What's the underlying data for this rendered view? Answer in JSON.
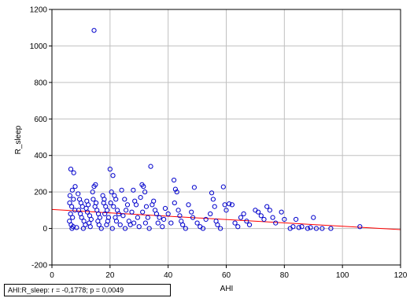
{
  "chart_data": {
    "type": "scatter",
    "title": "",
    "xlabel": "AHI",
    "ylabel": "R_sleep",
    "xlim": [
      0,
      120
    ],
    "ylim": [
      -200,
      1200
    ],
    "xticks": [
      0,
      20,
      40,
      60,
      80,
      100,
      120
    ],
    "yticks": [
      -200,
      0,
      200,
      400,
      600,
      800,
      1000,
      1200
    ],
    "grid": true,
    "marker_color": "#0000cc",
    "fit_line_color": "#ff0000",
    "fit_line": {
      "x": [
        0,
        120
      ],
      "y": [
        104,
        -6
      ]
    },
    "annotation": "AHI:R_sleep:   r = -0,1778; p = 0,0049",
    "points": [
      [
        14.5,
        1085
      ],
      [
        6.5,
        325
      ],
      [
        7.5,
        305
      ],
      [
        8,
        230
      ],
      [
        7,
        210
      ],
      [
        6.2,
        180
      ],
      [
        7.4,
        160
      ],
      [
        6.1,
        140
      ],
      [
        6.8,
        120
      ],
      [
        7.9,
        100
      ],
      [
        6.4,
        80
      ],
      [
        7.1,
        60
      ],
      [
        6,
        40
      ],
      [
        6.6,
        20
      ],
      [
        7.3,
        10
      ],
      [
        6.9,
        0
      ],
      [
        8.5,
        5
      ],
      [
        9,
        190
      ],
      [
        9.5,
        160
      ],
      [
        10,
        140
      ],
      [
        10.5,
        120
      ],
      [
        9.2,
        100
      ],
      [
        9.8,
        80
      ],
      [
        10.2,
        60
      ],
      [
        11,
        40
      ],
      [
        11.5,
        20
      ],
      [
        10.8,
        0
      ],
      [
        12,
        150
      ],
      [
        12.5,
        130
      ],
      [
        11.8,
        110
      ],
      [
        12.2,
        90
      ],
      [
        13,
        70
      ],
      [
        13.5,
        50
      ],
      [
        12.8,
        30
      ],
      [
        13.2,
        10
      ],
      [
        14,
        200
      ],
      [
        14.5,
        230
      ],
      [
        15,
        240
      ],
      [
        14.2,
        160
      ],
      [
        15.2,
        140
      ],
      [
        14.8,
        120
      ],
      [
        15.5,
        100
      ],
      [
        16,
        80
      ],
      [
        16.5,
        60
      ],
      [
        15.8,
        40
      ],
      [
        16.2,
        20
      ],
      [
        17,
        0
      ],
      [
        17.5,
        180
      ],
      [
        18,
        160
      ],
      [
        17.8,
        140
      ],
      [
        18.5,
        120
      ],
      [
        19,
        100
      ],
      [
        18.2,
        80
      ],
      [
        19.5,
        60
      ],
      [
        19.2,
        40
      ],
      [
        18.8,
        20
      ],
      [
        20,
        325
      ],
      [
        21,
        290
      ],
      [
        20.5,
        200
      ],
      [
        21.5,
        180
      ],
      [
        22,
        160
      ],
      [
        20.2,
        140
      ],
      [
        21.2,
        120
      ],
      [
        22.5,
        100
      ],
      [
        23,
        80
      ],
      [
        21.8,
        60
      ],
      [
        22.2,
        40
      ],
      [
        23.5,
        20
      ],
      [
        20.8,
        0
      ],
      [
        24,
        210
      ],
      [
        25,
        160
      ],
      [
        26,
        130
      ],
      [
        25.5,
        100
      ],
      [
        24.5,
        70
      ],
      [
        26.5,
        40
      ],
      [
        27,
        20
      ],
      [
        25.2,
        0
      ],
      [
        28,
        210
      ],
      [
        28.5,
        150
      ],
      [
        29,
        130
      ],
      [
        27.5,
        90
      ],
      [
        29.5,
        60
      ],
      [
        28.2,
        30
      ],
      [
        30,
        10
      ],
      [
        31,
        240
      ],
      [
        31.5,
        230
      ],
      [
        32,
        200
      ],
      [
        30.5,
        170
      ],
      [
        32.5,
        120
      ],
      [
        31.2,
        90
      ],
      [
        33,
        60
      ],
      [
        32.2,
        30
      ],
      [
        33.5,
        0
      ],
      [
        34,
        340
      ],
      [
        35,
        150
      ],
      [
        34.5,
        130
      ],
      [
        35.5,
        100
      ],
      [
        36,
        80
      ],
      [
        37,
        60
      ],
      [
        36.5,
        30
      ],
      [
        38,
        10
      ],
      [
        39,
        110
      ],
      [
        40,
        80
      ],
      [
        38.5,
        50
      ],
      [
        41,
        30
      ],
      [
        42,
        265
      ],
      [
        42.5,
        215
      ],
      [
        43,
        200
      ],
      [
        42.2,
        140
      ],
      [
        43.5,
        100
      ],
      [
        44,
        70
      ],
      [
        44.5,
        40
      ],
      [
        45,
        20
      ],
      [
        46,
        0
      ],
      [
        47,
        130
      ],
      [
        48,
        90
      ],
      [
        49,
        225
      ],
      [
        48.5,
        60
      ],
      [
        50,
        30
      ],
      [
        51,
        10
      ],
      [
        52,
        0
      ],
      [
        53,
        50
      ],
      [
        55,
        195
      ],
      [
        55.5,
        160
      ],
      [
        56,
        120
      ],
      [
        54.5,
        80
      ],
      [
        56.5,
        40
      ],
      [
        57,
        20
      ],
      [
        58,
        0
      ],
      [
        59,
        228
      ],
      [
        59.5,
        130
      ],
      [
        60,
        100
      ],
      [
        61,
        135
      ],
      [
        62,
        130
      ],
      [
        63,
        30
      ],
      [
        64,
        10
      ],
      [
        65,
        60
      ],
      [
        66,
        80
      ],
      [
        67,
        40
      ],
      [
        68,
        20
      ],
      [
        70,
        100
      ],
      [
        71,
        90
      ],
      [
        72,
        70
      ],
      [
        73,
        50
      ],
      [
        74,
        120
      ],
      [
        75,
        100
      ],
      [
        76,
        60
      ],
      [
        77,
        30
      ],
      [
        79,
        90
      ],
      [
        80,
        50
      ],
      [
        82,
        0
      ],
      [
        83,
        10
      ],
      [
        84,
        50
      ],
      [
        85,
        5
      ],
      [
        86,
        10
      ],
      [
        88,
        0
      ],
      [
        89,
        5
      ],
      [
        90,
        60
      ],
      [
        91,
        0
      ],
      [
        93,
        0
      ],
      [
        96,
        0
      ],
      [
        106,
        10
      ]
    ]
  },
  "colors": {
    "grid": "#c0c0c0",
    "frame": "#000000",
    "background": "#ffffff"
  }
}
